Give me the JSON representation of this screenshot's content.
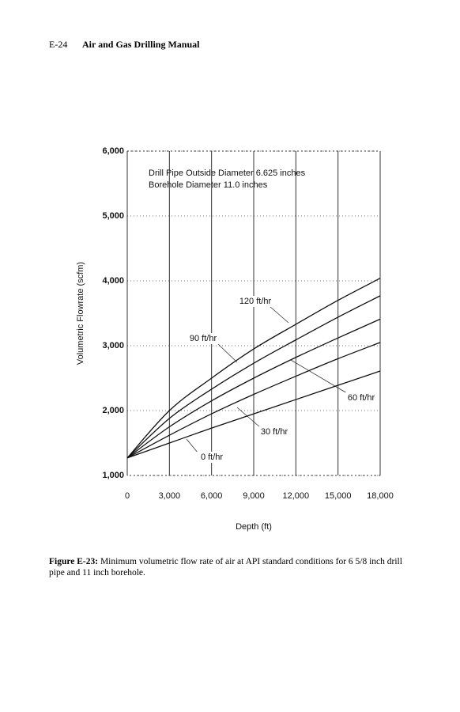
{
  "header": {
    "page": "E-24",
    "title": "Air and Gas Drilling Manual"
  },
  "chart_data": {
    "type": "line",
    "box_lines": [
      "Drill Pipe Outside Diameter 6.625 inches",
      "Borehole Diameter 11.0 inches"
    ],
    "y_label": "Volumetric Flowrate (scfm)",
    "x_label": "Depth (ft)",
    "x": [
      0,
      3000,
      6000,
      9000,
      12000,
      15000,
      18000
    ],
    "series": [
      {
        "name": "120 ft/hr",
        "color": "#111111",
        "values": [
          1270,
          2000,
          2500,
          2950,
          3330,
          3700,
          4040
        ]
      },
      {
        "name": "90 ft/hr",
        "color": "#111111",
        "values": [
          1270,
          1880,
          2330,
          2730,
          3090,
          3440,
          3770
        ]
      },
      {
        "name": "60 ft/hr",
        "color": "#111111",
        "values": [
          1270,
          1750,
          2150,
          2500,
          2820,
          3120,
          3410
        ]
      },
      {
        "name": "30 ft/hr",
        "color": "#111111",
        "values": [
          1270,
          1620,
          1950,
          2250,
          2530,
          2800,
          3050
        ]
      },
      {
        "name": "0 ft/hr",
        "color": "#111111",
        "values": [
          1270,
          1500,
          1730,
          1950,
          2170,
          2390,
          2610
        ]
      }
    ],
    "xlim": [
      0,
      18000
    ],
    "xticks": [
      0,
      {
        "value": 3000,
        "label": "3,000"
      },
      {
        "value": 6000,
        "label": "6,000"
      },
      {
        "value": 9000,
        "label": "9,000"
      },
      {
        "value": 12000,
        "label": "12,000"
      },
      {
        "value": 15000,
        "label": "15,000"
      },
      {
        "value": 18000,
        "label": "18,000"
      }
    ],
    "ylim": [
      1000,
      6000
    ],
    "yticks": [
      {
        "value": 1000,
        "label": "1,000"
      },
      {
        "value": 2000,
        "label": "2,000"
      },
      {
        "value": 3000,
        "label": "3,000"
      },
      {
        "value": 4000,
        "label": "4,000"
      },
      {
        "value": 5000,
        "label": "5,000"
      },
      {
        "value": 6000,
        "label": "6,000"
      }
    ],
    "grid": true
  },
  "caption": {
    "label": "Figure E-23:",
    "text": "Minimum volumetric flow rate of air at API standard conditions for 6 5/8 inch drill pipe and 11 inch borehole."
  }
}
